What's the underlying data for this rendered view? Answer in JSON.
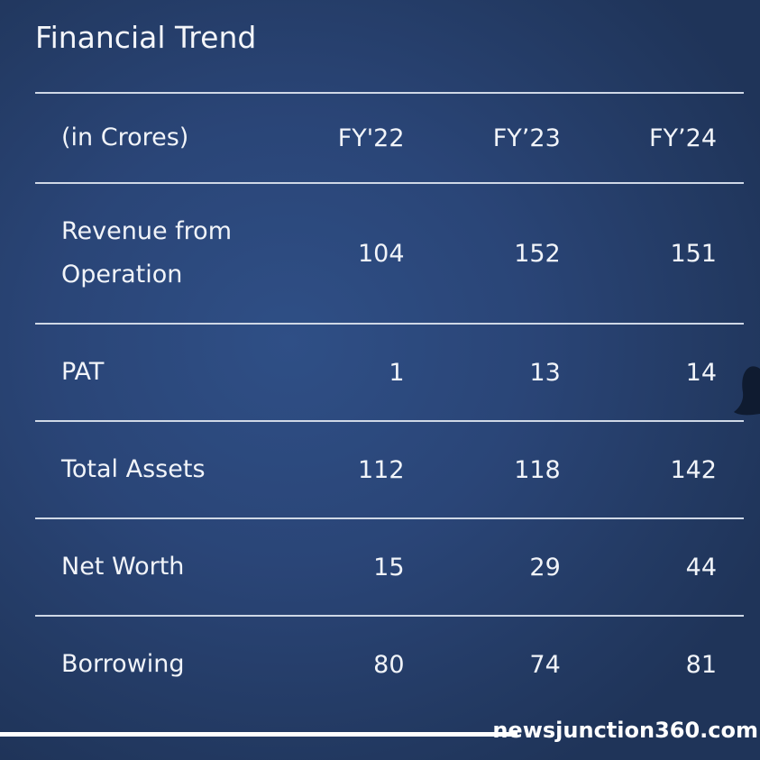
{
  "title": "Financial Trend",
  "table": {
    "headers": [
      "(in Crores)",
      "FY'22",
      "FY’23",
      "FY’24"
    ],
    "rows": [
      {
        "label": "Revenue from Operation",
        "values": [
          "104",
          "152",
          "151"
        ]
      },
      {
        "label": "PAT",
        "values": [
          "1",
          "13",
          "14"
        ]
      },
      {
        "label": "Total Assets",
        "values": [
          "112",
          "118",
          "142"
        ]
      },
      {
        "label": "Net Worth",
        "values": [
          "15",
          "29",
          "44"
        ]
      },
      {
        "label": "Borrowing",
        "values": [
          "80",
          "74",
          "81"
        ]
      }
    ]
  },
  "watermark": "newsjunction360.com",
  "colors": {
    "background": "#2a4577",
    "rule": "#cfd8e6",
    "text": "#f1f4f9"
  }
}
